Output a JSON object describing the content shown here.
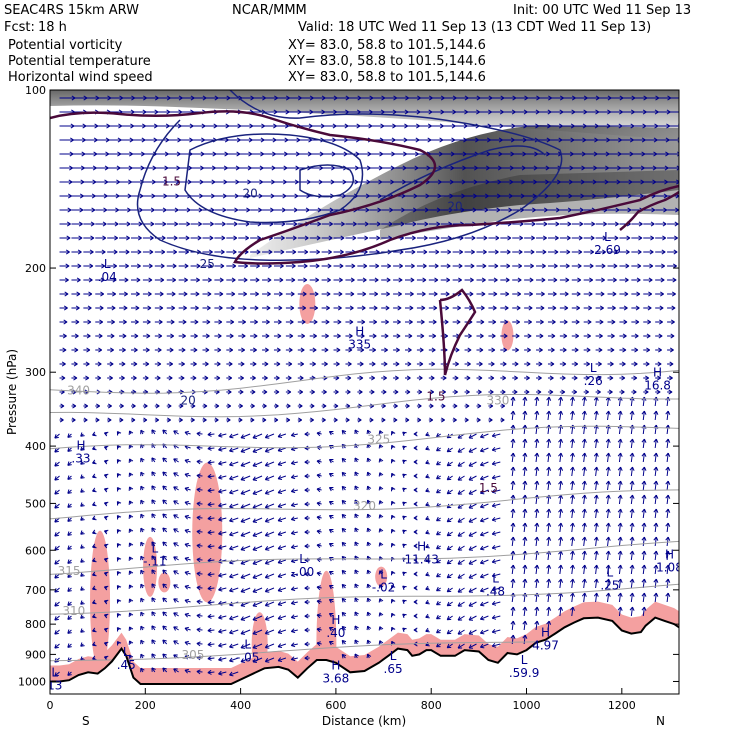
{
  "header": {
    "model": "SEAC4RS 15km ARW",
    "org": "NCAR/MMM",
    "init": "Init: 00 UTC Wed 11 Sep 13",
    "fcst_label": "Fcst:",
    "fcst_value": "18 h",
    "valid": "Valid: 18 UTC Wed 11 Sep 13 (13 CDT Wed 11 Sep 13)",
    "fields": [
      {
        "name": "Potential vorticity",
        "xy": "XY=  83.0, 58.8 to 101.5,144.6",
        "color": "#000000"
      },
      {
        "name": "Potential temperature",
        "xy": "XY=  83.0, 58.8 to 101.5,144.6",
        "color": "#a8a8a8"
      },
      {
        "name": "Horizontal wind speed",
        "xy": "XY=  83.0, 58.8 to 101.5,144.6",
        "color": "#101080"
      }
    ]
  },
  "colors": {
    "pv": "#4a0a3a",
    "theta": "#a0a0a0",
    "wind_speed": "#1a237e",
    "vectors": "#00008b",
    "moisture_fill": "#f4a0a0",
    "terrain": "#000000"
  },
  "chart_data": {
    "type": "cross-section",
    "xlabel": "Distance (km)",
    "ylabel": "Pressure (hPa)",
    "xlim": [
      0,
      1320
    ],
    "ylim": [
      1050,
      100
    ],
    "y_scale": "log",
    "x_ticks": [
      0,
      200,
      400,
      600,
      800,
      1000,
      1200
    ],
    "y_ticks": [
      100,
      200,
      300,
      400,
      500,
      600,
      700,
      800,
      900,
      1000
    ],
    "end_labels": {
      "left": "S",
      "right": "N"
    },
    "terrain_surface": {
      "distance_km": [
        0,
        20,
        40,
        60,
        80,
        100,
        115,
        130,
        150,
        160,
        175,
        190,
        220,
        300,
        380,
        450,
        480,
        500,
        520,
        540,
        560,
        580,
        600,
        630,
        660,
        690,
        710,
        730,
        750,
        760,
        775,
        790,
        800,
        820,
        850,
        870,
        900,
        920,
        940,
        960,
        980,
        1000,
        1020,
        1040,
        1060,
        1080,
        1100,
        1120,
        1150,
        1180,
        1200,
        1220,
        1240,
        1250,
        1270,
        1290,
        1310,
        1320
      ],
      "pressure_hpa": [
        1000,
        1000,
        995,
        975,
        965,
        970,
        950,
        925,
        880,
        905,
        985,
        1010,
        1010,
        1010,
        1010,
        950,
        945,
        955,
        985,
        950,
        920,
        920,
        930,
        965,
        960,
        930,
        905,
        880,
        885,
        905,
        900,
        885,
        885,
        905,
        905,
        885,
        890,
        920,
        930,
        895,
        900,
        885,
        860,
        850,
        830,
        810,
        795,
        782,
        780,
        790,
        820,
        830,
        825,
        805,
        780,
        790,
        800,
        810
      ]
    },
    "theta_contours": [
      {
        "level": 305,
        "label_pos": [
          300,
          902
        ]
      },
      {
        "level": 310,
        "label_pos": [
          50,
          760
        ]
      },
      {
        "level": 315,
        "label_pos": [
          40,
          650
        ]
      },
      {
        "level": 320,
        "label_pos": [
          660,
          505
        ]
      },
      {
        "level": 325,
        "label_pos": [
          690,
          390
        ]
      },
      {
        "level": 330,
        "label_pos": [
          940,
          335
        ]
      },
      {
        "level": 340,
        "label_pos": [
          60,
          322
        ]
      }
    ],
    "pv_contours": [
      {
        "level": 1.5,
        "label_pos": [
          255,
          145
        ]
      },
      {
        "level": 1.5,
        "label_pos": [
          810,
          335
        ]
      },
      {
        "level": 1.5,
        "label_pos": [
          920,
          478
        ]
      }
    ],
    "wind_speed_contours": [
      {
        "level": 20,
        "label_pos": [
          420,
          152
        ]
      },
      {
        "level": 25,
        "label_pos": [
          330,
          200
        ]
      },
      {
        "level": 20,
        "label_pos": [
          290,
          340
        ]
      },
      {
        "level": 20,
        "label_pos": [
          850,
          160
        ]
      }
    ],
    "extrema": [
      {
        "type": "L",
        "value": ".04",
        "x": 120,
        "p": 200
      },
      {
        "type": "L",
        "value": "2.69",
        "x": 1170,
        "p": 180
      },
      {
        "type": "H",
        "value": "335",
        "x": 650,
        "p": 260
      },
      {
        "type": "L",
        "value": ".26",
        "x": 1140,
        "p": 300
      },
      {
        "type": "H",
        "value": "16.8",
        "x": 1275,
        "p": 305
      },
      {
        "type": "H",
        "value": ".33",
        "x": 65,
        "p": 405
      },
      {
        "type": "L",
        "value": "-.11",
        "x": 220,
        "p": 605
      },
      {
        "type": "L",
        "value": "-.00",
        "x": 530,
        "p": 630
      },
      {
        "type": "H",
        "value": "11.43",
        "x": 780,
        "p": 600
      },
      {
        "type": "L",
        "value": "-.02",
        "x": 700,
        "p": 670
      },
      {
        "type": "L",
        "value": ".48",
        "x": 935,
        "p": 680
      },
      {
        "type": "L",
        "value": ".25",
        "x": 1175,
        "p": 665
      },
      {
        "type": "H",
        "value": "1.08",
        "x": 1300,
        "p": 620
      },
      {
        "type": "H",
        "value": ".40",
        "x": 600,
        "p": 800
      },
      {
        "type": "H",
        "value": "4.97",
        "x": 1040,
        "p": 840
      },
      {
        "type": "L",
        "value": "-.05",
        "x": 415,
        "p": 880
      },
      {
        "type": "L",
        "value": ".45",
        "x": 160,
        "p": 905
      },
      {
        "type": "L",
        "value": ".65",
        "x": 720,
        "p": 920
      },
      {
        "type": "H",
        "value": "3.68",
        "x": 600,
        "p": 955
      },
      {
        "type": "L",
        "value": ".59.9",
        "x": 995,
        "p": 935
      },
      {
        "type": "L",
        "value": "13",
        "x": 10,
        "p": 980
      }
    ]
  }
}
